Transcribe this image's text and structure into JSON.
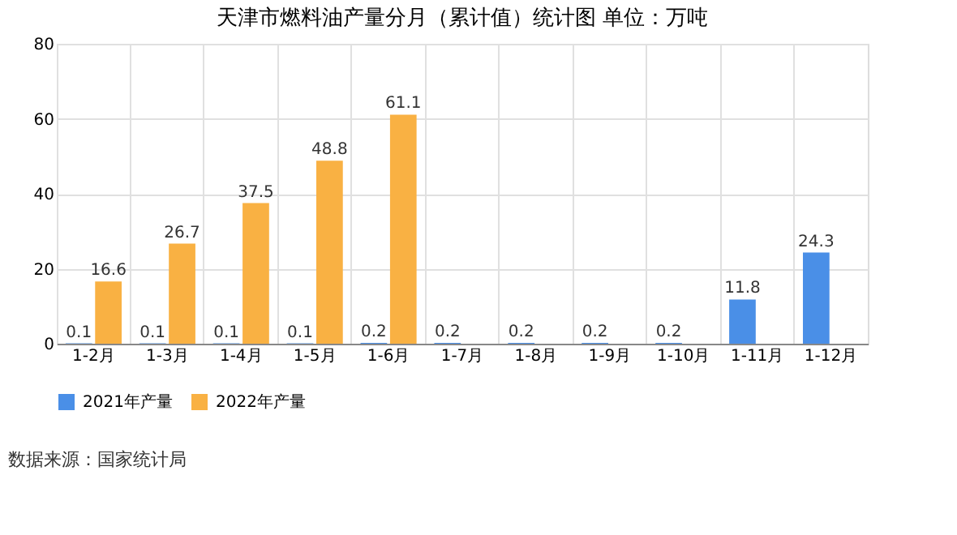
{
  "chart_data": {
    "type": "bar",
    "title": "天津市燃料油产量分月（累计值）统计图 单位：万吨",
    "categories": [
      "1-2月",
      "1-3月",
      "1-4月",
      "1-5月",
      "1-6月",
      "1-7月",
      "1-8月",
      "1-9月",
      "1-10月",
      "1-11月",
      "1-12月"
    ],
    "series": [
      {
        "name": "2021年产量",
        "color": "#4a8fe7",
        "values": [
          0.1,
          0.1,
          0.1,
          0.1,
          0.2,
          0.2,
          0.2,
          0.2,
          0.2,
          11.8,
          24.3
        ]
      },
      {
        "name": "2022年产量",
        "color": "#f9b143",
        "values": [
          16.6,
          26.7,
          37.5,
          48.8,
          61.1,
          null,
          null,
          null,
          null,
          null,
          null
        ]
      }
    ],
    "ylim": [
      0,
      80
    ],
    "yticks": [
      0,
      20,
      40,
      60,
      80
    ],
    "grid": true,
    "legend": "bottom",
    "data_labels": true,
    "annotations": [
      "数据来源：国家统计局"
    ]
  }
}
